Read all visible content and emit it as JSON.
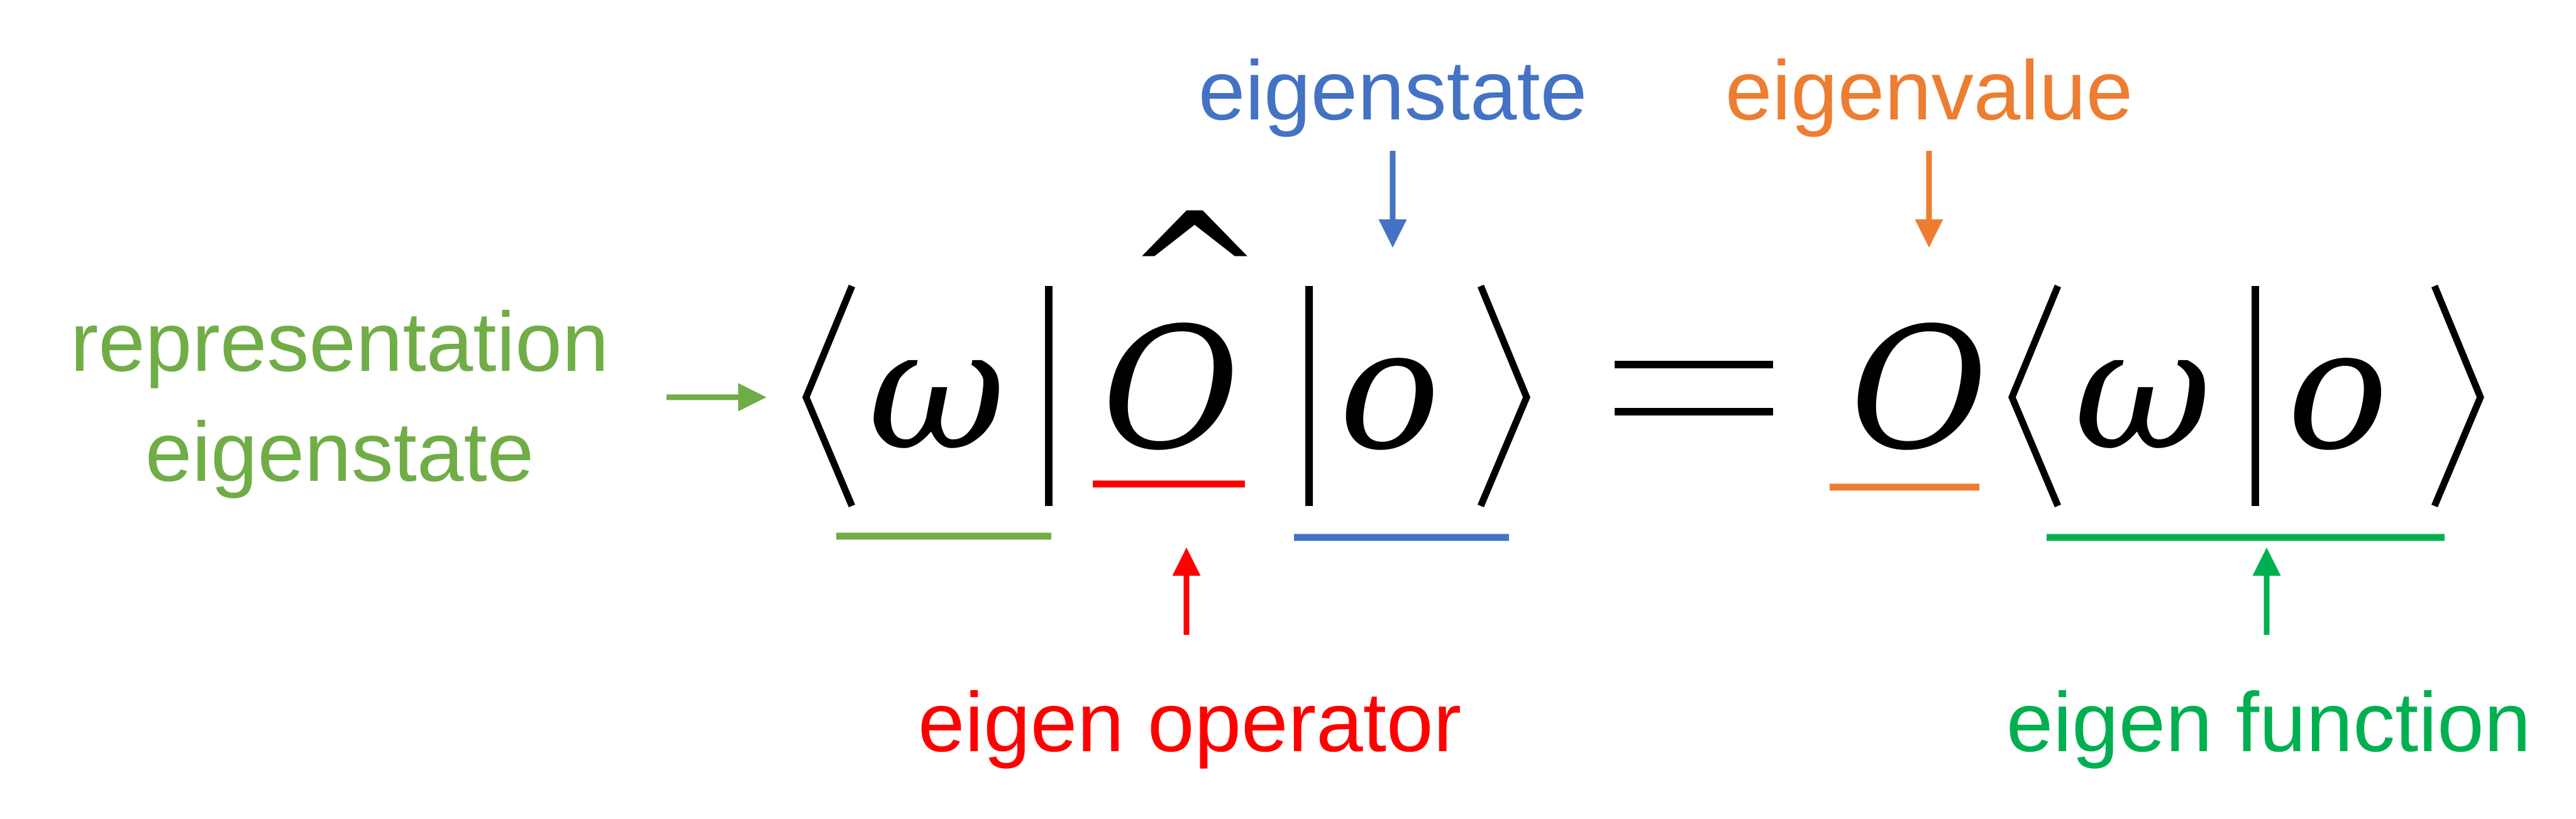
{
  "colors": {
    "representation": "#70ad47",
    "operator": "#ff0000",
    "eigenstate": "#4472c4",
    "eigenvalue": "#ed7d31",
    "function": "#00b050",
    "ink": "#000000"
  },
  "labels": {
    "representation_line1": "representation",
    "representation_line2": "eigenstate",
    "eigenstate": "eigenstate",
    "eigenvalue": "eigenvalue",
    "eigen_operator": "eigen operator",
    "eigen_function": "eigen function"
  },
  "equation": {
    "omega": "ω",
    "operator": "O",
    "hat": "^",
    "ket": "o",
    "equals": "=",
    "eigenvalue": "O",
    "omega2": "ω",
    "ket2": "o"
  }
}
